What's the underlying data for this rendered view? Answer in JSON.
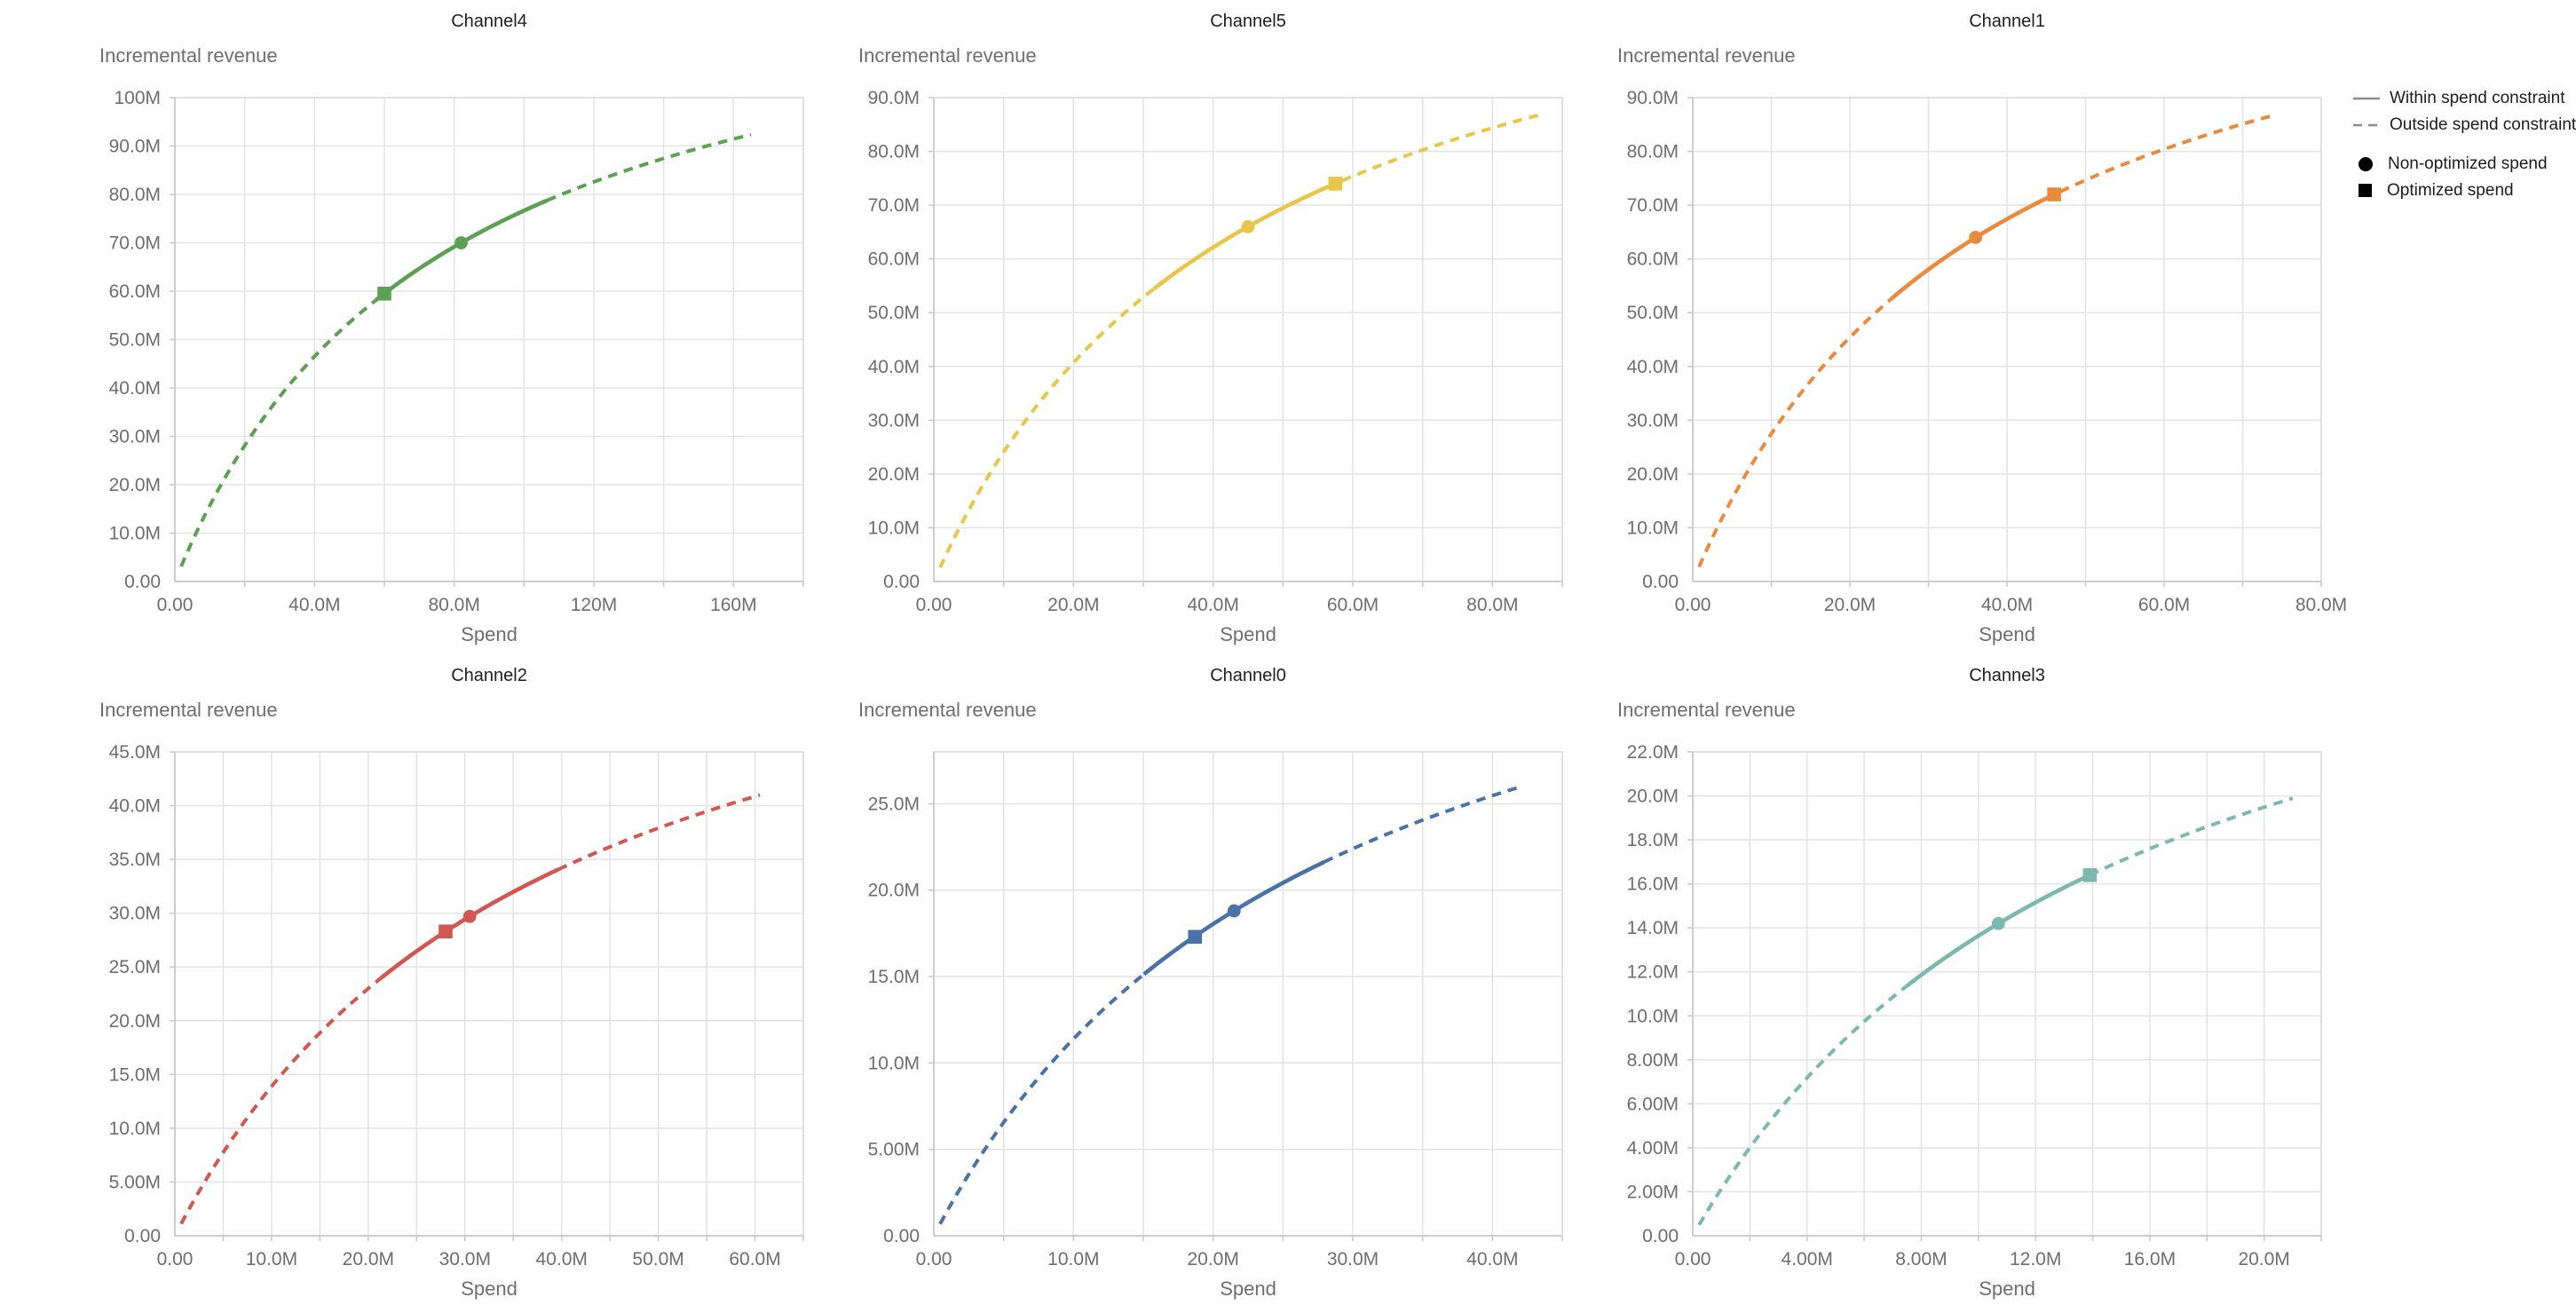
{
  "page": {
    "background": "#ffffff"
  },
  "legend": {
    "line_color": "#8c8c8c",
    "marker_color": "#000000",
    "items": [
      {
        "label": "Within spend constraint",
        "symbol": "solid-line"
      },
      {
        "label": "Outside spend constraint",
        "symbol": "dashed-line"
      },
      {
        "label": "Non-optimized spend",
        "symbol": "circle"
      },
      {
        "label": "Optimized spend",
        "symbol": "square"
      }
    ]
  },
  "styles": {
    "grid_color": "#e4e4e4",
    "frame_color": "#dcdcdc",
    "axis_color": "#c9c9c9",
    "tick_text_color": "#6e6e6e",
    "axis_title_color": "#6e6e6e",
    "chart_title_color": "#1f1f1f"
  },
  "chart_data": [
    {
      "type": "line",
      "title": "Channel4",
      "xlabel": "Spend",
      "ylabel": "Incremental revenue",
      "color": "#5BA053",
      "units": "M",
      "xlim": [
        0,
        180
      ],
      "ylim": [
        0,
        100
      ],
      "x_grid_step": 20,
      "y_grid_step": 10,
      "xticks": [
        {
          "v": 0,
          "label": "0.00"
        },
        {
          "v": 40,
          "label": "40.0M"
        },
        {
          "v": 80,
          "label": "80.0M"
        },
        {
          "v": 120,
          "label": "120M"
        },
        {
          "v": 160,
          "label": "160M"
        }
      ],
      "yticks": [
        {
          "v": 0,
          "label": "0.00"
        },
        {
          "v": 10,
          "label": "10.0M"
        },
        {
          "v": 20,
          "label": "20.0M"
        },
        {
          "v": 30,
          "label": "30.0M"
        },
        {
          "v": 40,
          "label": "40.0M"
        },
        {
          "v": 50,
          "label": "50.0M"
        },
        {
          "v": 60,
          "label": "60.0M"
        },
        {
          "v": 70,
          "label": "70.0M"
        },
        {
          "v": 80,
          "label": "80.0M"
        },
        {
          "v": 90,
          "label": "90.0M"
        },
        {
          "v": 100,
          "label": "100M"
        }
      ],
      "curve": {
        "model": "hill",
        "a": 134.9,
        "b": 76,
        "x_start": 1.8,
        "x_end": 165
      },
      "solid_range": [
        57.4,
        106.6
      ],
      "points": {
        "non_optimized": {
          "x": 82,
          "y": 70.0,
          "marker": "circle"
        },
        "optimized": {
          "x": 60,
          "y": 59.5,
          "marker": "square"
        }
      }
    },
    {
      "type": "line",
      "title": "Channel5",
      "xlabel": "Spend",
      "ylabel": "Incremental revenue",
      "color": "#E8C649",
      "units": "M",
      "xlim": [
        0,
        90
      ],
      "ylim": [
        0,
        90
      ],
      "x_grid_step": 10,
      "y_grid_step": 10,
      "xticks": [
        {
          "v": 0,
          "label": "0.00"
        },
        {
          "v": 20,
          "label": "20.0M"
        },
        {
          "v": 40,
          "label": "40.0M"
        },
        {
          "v": 60,
          "label": "60.0M"
        },
        {
          "v": 80,
          "label": "80.0M"
        }
      ],
      "yticks": [
        {
          "v": 0,
          "label": "0.00"
        },
        {
          "v": 10,
          "label": "10.0M"
        },
        {
          "v": 20,
          "label": "20.0M"
        },
        {
          "v": 30,
          "label": "30.0M"
        },
        {
          "v": 40,
          "label": "40.0M"
        },
        {
          "v": 50,
          "label": "50.0M"
        },
        {
          "v": 60,
          "label": "60.0M"
        },
        {
          "v": 70,
          "label": "70.0M"
        },
        {
          "v": 80,
          "label": "80.0M"
        },
        {
          "v": 90,
          "label": "90.0M"
        }
      ],
      "curve": {
        "model": "hill",
        "a": 131.3,
        "b": 44.5,
        "x_start": 0.9,
        "x_end": 87
      },
      "solid_range": [
        31.5,
        58.5
      ],
      "points": {
        "non_optimized": {
          "x": 45,
          "y": 66.0,
          "marker": "circle"
        },
        "optimized": {
          "x": 57.5,
          "y": 74.0,
          "marker": "square"
        }
      }
    },
    {
      "type": "line",
      "title": "Channel1",
      "xlabel": "Spend",
      "ylabel": "Incremental revenue",
      "color": "#E98A3C",
      "units": "M",
      "xlim": [
        0,
        80
      ],
      "ylim": [
        0,
        90
      ],
      "x_grid_step": 10,
      "y_grid_step": 10,
      "xticks": [
        {
          "v": 0,
          "label": "0.00"
        },
        {
          "v": 20,
          "label": "20.0M"
        },
        {
          "v": 40,
          "label": "40.0M"
        },
        {
          "v": 60,
          "label": "60.0M"
        },
        {
          "v": 80,
          "label": "80.0M"
        }
      ],
      "yticks": [
        {
          "v": 0,
          "label": "0.00"
        },
        {
          "v": 10,
          "label": "10.0M"
        },
        {
          "v": 20,
          "label": "20.0M"
        },
        {
          "v": 30,
          "label": "30.0M"
        },
        {
          "v": 40,
          "label": "40.0M"
        },
        {
          "v": 50,
          "label": "50.0M"
        },
        {
          "v": 60,
          "label": "60.0M"
        },
        {
          "v": 70,
          "label": "70.0M"
        },
        {
          "v": 80,
          "label": "80.0M"
        },
        {
          "v": 90,
          "label": "90.0M"
        }
      ],
      "curve": {
        "model": "hill",
        "a": 130.8,
        "b": 37.6,
        "x_start": 0.8,
        "x_end": 74
      },
      "solid_range": [
        25.2,
        46.8
      ],
      "points": {
        "non_optimized": {
          "x": 36,
          "y": 64.0,
          "marker": "circle"
        },
        "optimized": {
          "x": 46,
          "y": 72.0,
          "marker": "square"
        }
      }
    },
    {
      "type": "line",
      "title": "Channel2",
      "xlabel": "Spend",
      "ylabel": "Incremental revenue",
      "color": "#D25753",
      "units": "M",
      "xlim": [
        0,
        65
      ],
      "ylim": [
        0,
        45
      ],
      "x_grid_step": 5,
      "y_grid_step": 5,
      "xticks": [
        {
          "v": 0,
          "label": "0.00"
        },
        {
          "v": 10,
          "label": "10.0M"
        },
        {
          "v": 20,
          "label": "20.0M"
        },
        {
          "v": 30,
          "label": "30.0M"
        },
        {
          "v": 40,
          "label": "40.0M"
        },
        {
          "v": 50,
          "label": "50.0M"
        },
        {
          "v": 60,
          "label": "60.0M"
        }
      ],
      "yticks": [
        {
          "v": 0,
          "label": "0.00"
        },
        {
          "v": 5,
          "label": "5.00M"
        },
        {
          "v": 10,
          "label": "10.0M"
        },
        {
          "v": 15,
          "label": "15.0M"
        },
        {
          "v": 20,
          "label": "20.0M"
        },
        {
          "v": 25,
          "label": "25.0M"
        },
        {
          "v": 30,
          "label": "30.0M"
        },
        {
          "v": 35,
          "label": "35.0M"
        },
        {
          "v": 40,
          "label": "40.0M"
        },
        {
          "v": 45,
          "label": "45.0M"
        }
      ],
      "curve": {
        "model": "hill",
        "a": 66.8,
        "b": 38.1,
        "x_start": 0.65,
        "x_end": 60.5
      },
      "solid_range": [
        21.35,
        39.65
      ],
      "points": {
        "non_optimized": {
          "x": 30.5,
          "y": 29.7,
          "marker": "circle"
        },
        "optimized": {
          "x": 28,
          "y": 28.3,
          "marker": "square"
        }
      }
    },
    {
      "type": "line",
      "title": "Channel0",
      "xlabel": "Spend",
      "ylabel": "Incremental revenue",
      "color": "#4A72A6",
      "units": "M",
      "xlim": [
        0,
        45
      ],
      "ylim": [
        0,
        28
      ],
      "x_grid_step": 5,
      "y_grid_step": 5,
      "xticks": [
        {
          "v": 0,
          "label": "0.00"
        },
        {
          "v": 10,
          "label": "10.0M"
        },
        {
          "v": 20,
          "label": "20.0M"
        },
        {
          "v": 30,
          "label": "30.0M"
        },
        {
          "v": 40,
          "label": "40.0M"
        }
      ],
      "yticks": [
        {
          "v": 0,
          "label": "0.00"
        },
        {
          "v": 5,
          "label": "5.00M"
        },
        {
          "v": 10,
          "label": "10.0M"
        },
        {
          "v": 15,
          "label": "15.0M"
        },
        {
          "v": 20,
          "label": "20.0M"
        },
        {
          "v": 25,
          "label": "25.0M"
        }
      ],
      "curve": {
        "model": "hill",
        "a": 43.3,
        "b": 28,
        "x_start": 0.45,
        "x_end": 42
      },
      "solid_range": [
        15.05,
        27.95
      ],
      "points": {
        "non_optimized": {
          "x": 21.5,
          "y": 18.8,
          "marker": "circle"
        },
        "optimized": {
          "x": 18.7,
          "y": 17.3,
          "marker": "square"
        }
      }
    },
    {
      "type": "line",
      "title": "Channel3",
      "xlabel": "Spend",
      "ylabel": "Incremental revenue",
      "color": "#7DB8B0",
      "units": "M",
      "xlim": [
        0,
        22
      ],
      "ylim": [
        0,
        22
      ],
      "x_grid_step": 2,
      "y_grid_step": 2,
      "xticks": [
        {
          "v": 0,
          "label": "0.00"
        },
        {
          "v": 4,
          "label": "4.00M"
        },
        {
          "v": 8,
          "label": "8.00M"
        },
        {
          "v": 12,
          "label": "12.0M"
        },
        {
          "v": 16,
          "label": "16.0M"
        },
        {
          "v": 20,
          "label": "20.0M"
        }
      ],
      "yticks": [
        {
          "v": 0,
          "label": "0.00"
        },
        {
          "v": 2,
          "label": "2.00M"
        },
        {
          "v": 4,
          "label": "4.00M"
        },
        {
          "v": 6,
          "label": "6.00M"
        },
        {
          "v": 8,
          "label": "8.00M"
        },
        {
          "v": 10,
          "label": "10.0M"
        },
        {
          "v": 12,
          "label": "12.0M"
        },
        {
          "v": 14,
          "label": "14.0M"
        },
        {
          "v": 16,
          "label": "16.0M"
        },
        {
          "v": 18,
          "label": "18.0M"
        },
        {
          "v": 20,
          "label": "20.0M"
        },
        {
          "v": 22,
          "label": "22.0M"
        }
      ],
      "curve": {
        "model": "hill",
        "a": 34.1,
        "b": 15,
        "x_start": 0.22,
        "x_end": 21
      },
      "solid_range": [
        7.49,
        13.9
      ],
      "points": {
        "non_optimized": {
          "x": 10.7,
          "y": 14.2,
          "marker": "circle"
        },
        "optimized": {
          "x": 13.9,
          "y": 16.4,
          "marker": "square"
        }
      }
    }
  ]
}
